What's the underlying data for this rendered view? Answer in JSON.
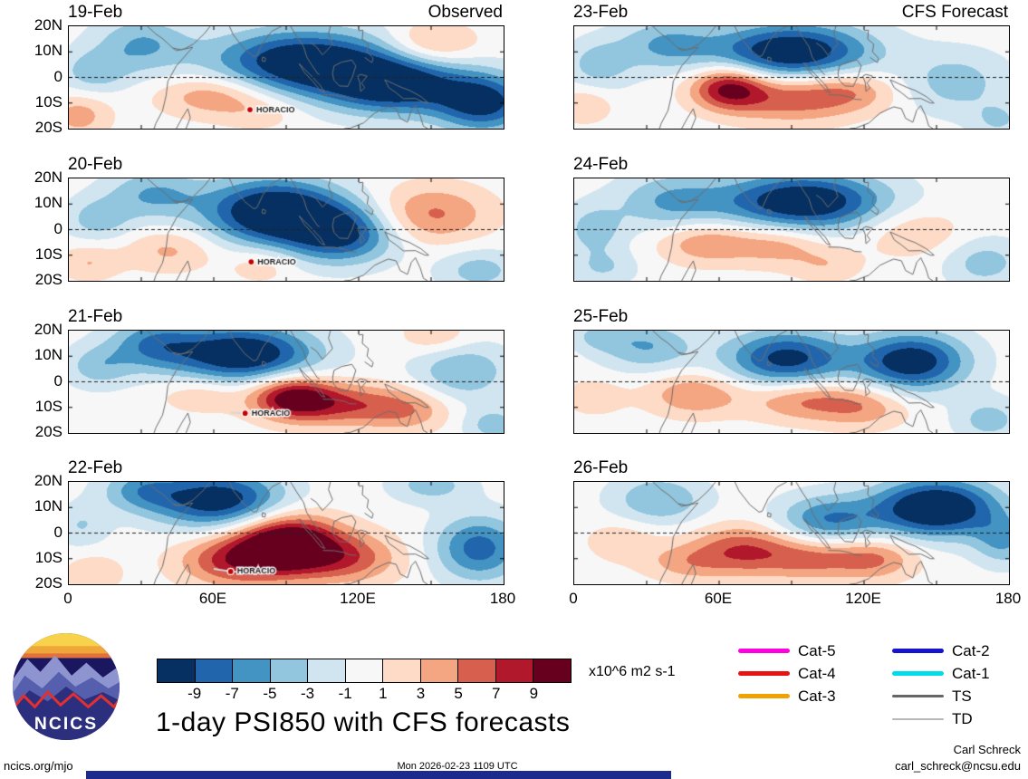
{
  "logo": {
    "text": "NCICS"
  },
  "footer": {
    "site": "ncics.org/mjo",
    "timestamp": "Mon 2026-02-23 1109 UTC",
    "credit_name": "Carl Schreck",
    "credit_email": "carl_schreck@ncsu.edu"
  },
  "chart_data": {
    "type": "heatmap",
    "title": "1-day PSI850 with CFS forecasts",
    "units": "x10^6 m2 s-1",
    "lon_range": [
      0,
      180
    ],
    "lat_range": [
      -20,
      20
    ],
    "x_tick_labels": [
      "0",
      "60E",
      "120E",
      "180"
    ],
    "x_tick_lons": [
      0,
      60,
      120,
      180
    ],
    "y_tick_labels": [
      "20N",
      "10N",
      "0",
      "10S",
      "20S"
    ],
    "y_tick_lats": [
      20,
      10,
      0,
      -10,
      -20
    ],
    "levels": [
      -9,
      -7,
      -5,
      -3,
      -1,
      1,
      3,
      5,
      7,
      9
    ],
    "colorbar_tick_labels": [
      "-9",
      "-7",
      "-5",
      "-3",
      "-1",
      "1",
      "3",
      "5",
      "7",
      "9"
    ],
    "palette": [
      "#053061",
      "#2166ac",
      "#4393c3",
      "#92c5de",
      "#d1e5f0",
      "#f7f7f7",
      "#fddbc7",
      "#f4a582",
      "#d6604d",
      "#b2182b",
      "#67001f"
    ],
    "columns": [
      {
        "heading": "Observed"
      },
      {
        "heading": "CFS Forecast"
      }
    ],
    "legend_left": [
      {
        "label": "Cat-5",
        "color": "#ff00e0",
        "thickness": 5
      },
      {
        "label": "Cat-4",
        "color": "#e81414",
        "thickness": 5
      },
      {
        "label": "Cat-3",
        "color": "#f0a300",
        "thickness": 5
      }
    ],
    "legend_right": [
      {
        "label": "Cat-2",
        "color": "#1515d0",
        "thickness": 5
      },
      {
        "label": "Cat-1",
        "color": "#00dce8",
        "thickness": 5
      },
      {
        "label": "TS",
        "color": "#666666",
        "thickness": 3
      },
      {
        "label": "TD",
        "color": "#b8b8b8",
        "thickness": 2
      }
    ],
    "panels": [
      {
        "date": "19-Feb",
        "row": 0,
        "column": 0,
        "storm": {
          "name": "HORACIO",
          "lon": 75,
          "lat": -12.6
        },
        "anomaly_centers": [
          {
            "lon": 97,
            "lat": 6,
            "amp": -12,
            "sx": 26,
            "sy": 9
          },
          {
            "lon": 135,
            "lat": -3,
            "amp": -11,
            "sx": 20,
            "sy": 8
          },
          {
            "lon": 172,
            "lat": -10,
            "amp": -10,
            "sx": 14,
            "sy": 8
          },
          {
            "lon": 30,
            "lat": 13,
            "amp": -5,
            "sx": 14,
            "sy": 8
          },
          {
            "lon": 10,
            "lat": 2,
            "amp": -4,
            "sx": 10,
            "sy": 6
          },
          {
            "lon": 60,
            "lat": -7,
            "amp": 5,
            "sx": 16,
            "sy": 6
          },
          {
            "lon": 150,
            "lat": 13,
            "amp": 4.5,
            "sx": 13,
            "sy": 6
          },
          {
            "lon": 4,
            "lat": -15,
            "amp": 4,
            "sx": 9,
            "sy": 6
          },
          {
            "lon": 80,
            "lat": -14,
            "amp": 2,
            "sx": 12,
            "sy": 5
          }
        ]
      },
      {
        "date": "20-Feb",
        "row": 1,
        "column": 0,
        "storm": {
          "name": "HORACIO",
          "lon": 75.5,
          "lat": -12.6
        },
        "anomaly_centers": [
          {
            "lon": 85,
            "lat": 7,
            "amp": -13,
            "sx": 20,
            "sy": 9
          },
          {
            "lon": 113,
            "lat": -2,
            "amp": -9,
            "sx": 16,
            "sy": 8
          },
          {
            "lon": 35,
            "lat": 14,
            "amp": -5,
            "sx": 14,
            "sy": 7
          },
          {
            "lon": 12,
            "lat": 4,
            "amp": -4,
            "sx": 10,
            "sy": 6
          },
          {
            "lon": 150,
            "lat": 6,
            "amp": 5.5,
            "sx": 17,
            "sy": 8
          },
          {
            "lon": 42,
            "lat": -8,
            "amp": 3.5,
            "sx": 13,
            "sy": 6
          },
          {
            "lon": 8,
            "lat": -13,
            "amp": 3,
            "sx": 9,
            "sy": 5
          },
          {
            "lon": 170,
            "lat": -16,
            "amp": -4,
            "sx": 12,
            "sy": 6
          },
          {
            "lon": 80,
            "lat": -14,
            "amp": 2.5,
            "sx": 10,
            "sy": 5
          }
        ]
      },
      {
        "date": "21-Feb",
        "row": 2,
        "column": 0,
        "storm": {
          "name": "HORACIO",
          "lon": 73,
          "lat": -12.3,
          "track": [
            [
              67,
              -12
            ],
            [
              73,
              -12.3
            ]
          ]
        },
        "anomaly_centers": [
          {
            "lon": 72,
            "lat": 11,
            "amp": -12,
            "sx": 21,
            "sy": 8
          },
          {
            "lon": 35,
            "lat": 15,
            "amp": -6,
            "sx": 13,
            "sy": 7
          },
          {
            "lon": 12,
            "lat": 6,
            "amp": -4,
            "sx": 10,
            "sy": 6
          },
          {
            "lon": 92,
            "lat": -6,
            "amp": 10,
            "sx": 12,
            "sy": 6
          },
          {
            "lon": 113,
            "lat": -9,
            "amp": 6,
            "sx": 16,
            "sy": 6
          },
          {
            "lon": 140,
            "lat": -11,
            "amp": 4.5,
            "sx": 13,
            "sy": 6
          },
          {
            "lon": 163,
            "lat": 4,
            "amp": -5,
            "sx": 14,
            "sy": 8
          },
          {
            "lon": 176,
            "lat": -17,
            "amp": -4,
            "sx": 9,
            "sy": 5
          },
          {
            "lon": 55,
            "lat": -5,
            "amp": 3,
            "sx": 12,
            "sy": 5
          },
          {
            "lon": 152,
            "lat": 18,
            "amp": 3,
            "sx": 10,
            "sy": 5
          }
        ]
      },
      {
        "date": "22-Feb",
        "row": 3,
        "column": 0,
        "storm": {
          "name": "HORACIO",
          "lon": 67,
          "lat": -15,
          "track": [
            [
              60,
              -14
            ],
            [
              67,
              -15
            ],
            [
              74,
              -15.5
            ]
          ]
        },
        "anomaly_centers": [
          {
            "lon": 62,
            "lat": 13,
            "amp": -11,
            "sx": 19,
            "sy": 8
          },
          {
            "lon": 30,
            "lat": 17,
            "amp": -5,
            "sx": 12,
            "sy": 6
          },
          {
            "lon": 90,
            "lat": -4,
            "amp": 13,
            "sx": 15,
            "sy": 8
          },
          {
            "lon": 68,
            "lat": -11,
            "amp": 7,
            "sx": 16,
            "sy": 7
          },
          {
            "lon": 115,
            "lat": -10,
            "amp": 6,
            "sx": 16,
            "sy": 7
          },
          {
            "lon": 170,
            "lat": -6,
            "amp": -8,
            "sx": 13,
            "sy": 9
          },
          {
            "lon": 150,
            "lat": 19,
            "amp": -4,
            "sx": 12,
            "sy": 5
          },
          {
            "lon": 5,
            "lat": 3,
            "amp": -3,
            "sx": 8,
            "sy": 6
          },
          {
            "lon": 10,
            "lat": -16,
            "amp": 3,
            "sx": 8,
            "sy": 5
          }
        ]
      },
      {
        "date": "23-Feb",
        "row": 0,
        "column": 1,
        "anomaly_centers": [
          {
            "lon": 90,
            "lat": 10,
            "amp": -12,
            "sx": 23,
            "sy": 8
          },
          {
            "lon": 38,
            "lat": 13,
            "amp": -5,
            "sx": 14,
            "sy": 7
          },
          {
            "lon": 10,
            "lat": 5,
            "amp": -4,
            "sx": 10,
            "sy": 7
          },
          {
            "lon": 64,
            "lat": -4,
            "amp": 9.5,
            "sx": 11,
            "sy": 6
          },
          {
            "lon": 90,
            "lat": -8,
            "amp": 6,
            "sx": 18,
            "sy": 7
          },
          {
            "lon": 115,
            "lat": -5,
            "amp": 4,
            "sx": 14,
            "sy": 6
          },
          {
            "lon": 158,
            "lat": -2,
            "amp": -4,
            "sx": 16,
            "sy": 9
          },
          {
            "lon": 176,
            "lat": -17,
            "amp": -3,
            "sx": 8,
            "sy": 5
          },
          {
            "lon": 4,
            "lat": -11,
            "amp": 3,
            "sx": 8,
            "sy": 5
          }
        ]
      },
      {
        "date": "24-Feb",
        "row": 1,
        "column": 1,
        "anomaly_centers": [
          {
            "lon": 95,
            "lat": 11,
            "amp": -12,
            "sx": 24,
            "sy": 8
          },
          {
            "lon": 40,
            "lat": 11,
            "amp": -5,
            "sx": 16,
            "sy": 8
          },
          {
            "lon": 8,
            "lat": 0,
            "amp": -4,
            "sx": 9,
            "sy": 7
          },
          {
            "lon": 55,
            "lat": -5,
            "amp": 5,
            "sx": 14,
            "sy": 6
          },
          {
            "lon": 85,
            "lat": -6,
            "amp": 4,
            "sx": 13,
            "sy": 6
          },
          {
            "lon": 140,
            "lat": -1,
            "amp": 3,
            "sx": 15,
            "sy": 7
          },
          {
            "lon": 170,
            "lat": -13,
            "amp": -4,
            "sx": 12,
            "sy": 7
          },
          {
            "lon": 12,
            "lat": -15,
            "amp": -3,
            "sx": 10,
            "sy": 5
          },
          {
            "lon": 105,
            "lat": -14,
            "amp": 2.5,
            "sx": 10,
            "sy": 5
          }
        ]
      },
      {
        "date": "25-Feb",
        "row": 2,
        "column": 1,
        "anomaly_centers": [
          {
            "lon": 88,
            "lat": 9,
            "amp": -10,
            "sx": 18,
            "sy": 8
          },
          {
            "lon": 140,
            "lat": 8,
            "amp": -11,
            "sx": 16,
            "sy": 8
          },
          {
            "lon": 30,
            "lat": 14,
            "amp": -5,
            "sx": 14,
            "sy": 7
          },
          {
            "lon": 50,
            "lat": -5,
            "amp": 5,
            "sx": 14,
            "sy": 6
          },
          {
            "lon": 95,
            "lat": -7,
            "amp": 5.5,
            "sx": 16,
            "sy": 6
          },
          {
            "lon": 120,
            "lat": -10,
            "amp": 4,
            "sx": 13,
            "sy": 6
          },
          {
            "lon": 172,
            "lat": -15,
            "amp": -4,
            "sx": 10,
            "sy": 6
          },
          {
            "lon": 8,
            "lat": -6,
            "amp": 2.5,
            "sx": 9,
            "sy": 5
          },
          {
            "lon": 10,
            "lat": 18,
            "amp": -3,
            "sx": 8,
            "sy": 4
          }
        ]
      },
      {
        "date": "26-Feb",
        "row": 3,
        "column": 1,
        "anomaly_centers": [
          {
            "lon": 150,
            "lat": 10,
            "amp": -13,
            "sx": 18,
            "sy": 8
          },
          {
            "lon": 105,
            "lat": 5,
            "amp": -7,
            "sx": 15,
            "sy": 7
          },
          {
            "lon": 35,
            "lat": 13,
            "amp": -5,
            "sx": 14,
            "sy": 7
          },
          {
            "lon": 70,
            "lat": -7,
            "amp": 7,
            "sx": 16,
            "sy": 7
          },
          {
            "lon": 100,
            "lat": -10,
            "amp": 5,
            "sx": 14,
            "sy": 6
          },
          {
            "lon": 125,
            "lat": -10,
            "amp": 5,
            "sx": 12,
            "sy": 6
          },
          {
            "lon": 178,
            "lat": -3,
            "amp": -5,
            "sx": 9,
            "sy": 7
          },
          {
            "lon": 20,
            "lat": -3,
            "amp": 2.5,
            "sx": 11,
            "sy": 6
          },
          {
            "lon": 45,
            "lat": -12,
            "amp": 3,
            "sx": 12,
            "sy": 5
          }
        ]
      }
    ]
  }
}
